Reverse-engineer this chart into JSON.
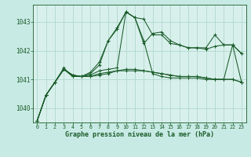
{
  "title": "Graphe pression niveau de la mer (hPa)",
  "background_color": "#c8eae4",
  "plot_background": "#d8f0ec",
  "grid_color": "#b0d8cc",
  "line_color": "#1a5c2a",
  "xlim": [
    -0.5,
    23.5
  ],
  "ylim": [
    1039.5,
    1043.6
  ],
  "yticks": [
    1040,
    1041,
    1042,
    1043
  ],
  "xticks": [
    0,
    1,
    2,
    3,
    4,
    5,
    6,
    7,
    8,
    9,
    10,
    11,
    12,
    13,
    14,
    15,
    16,
    17,
    18,
    19,
    20,
    21,
    22,
    23
  ],
  "series": [
    [
      1039.55,
      1040.45,
      1040.9,
      1041.35,
      1041.15,
      1041.1,
      1041.1,
      1041.15,
      1041.2,
      1041.3,
      1041.35,
      1041.35,
      1041.3,
      1041.25,
      1041.2,
      1041.15,
      1041.1,
      1041.1,
      1041.1,
      1041.05,
      1041.0,
      1041.0,
      1041.0,
      1040.9
    ],
    [
      1039.55,
      1040.45,
      1040.9,
      1041.35,
      1041.15,
      1041.1,
      1041.1,
      1041.2,
      1041.25,
      1041.3,
      1041.3,
      1041.3,
      1041.3,
      1041.25,
      1041.2,
      1041.15,
      1041.1,
      1041.1,
      1041.1,
      1041.05,
      1041.0,
      1041.0,
      1042.2,
      1040.9
    ],
    [
      1039.55,
      1040.45,
      1040.9,
      1041.35,
      1041.15,
      1041.1,
      1041.15,
      1041.3,
      1041.35,
      1041.4,
      1043.35,
      1043.15,
      1042.35,
      1041.2,
      1041.1,
      1041.05,
      1041.05,
      1041.05,
      1041.05,
      1041.0,
      1041.0,
      1041.0,
      1041.0,
      1040.9
    ],
    [
      1039.55,
      1040.45,
      1040.9,
      1041.35,
      1041.1,
      1041.1,
      1041.2,
      1041.5,
      1042.35,
      1042.8,
      1043.35,
      1043.15,
      1043.1,
      1042.55,
      1042.55,
      1042.25,
      1042.2,
      1042.1,
      1042.1,
      1042.05,
      1042.15,
      1042.2,
      1042.2,
      1041.9
    ],
    [
      1039.55,
      1040.45,
      1040.9,
      1041.4,
      1041.1,
      1041.1,
      1041.25,
      1041.6,
      1042.35,
      1042.75,
      1043.35,
      1043.15,
      1042.25,
      1042.6,
      1042.65,
      1042.35,
      1042.2,
      1042.1,
      1042.1,
      1042.1,
      1042.55,
      1042.2,
      1042.2,
      1041.9
    ]
  ]
}
